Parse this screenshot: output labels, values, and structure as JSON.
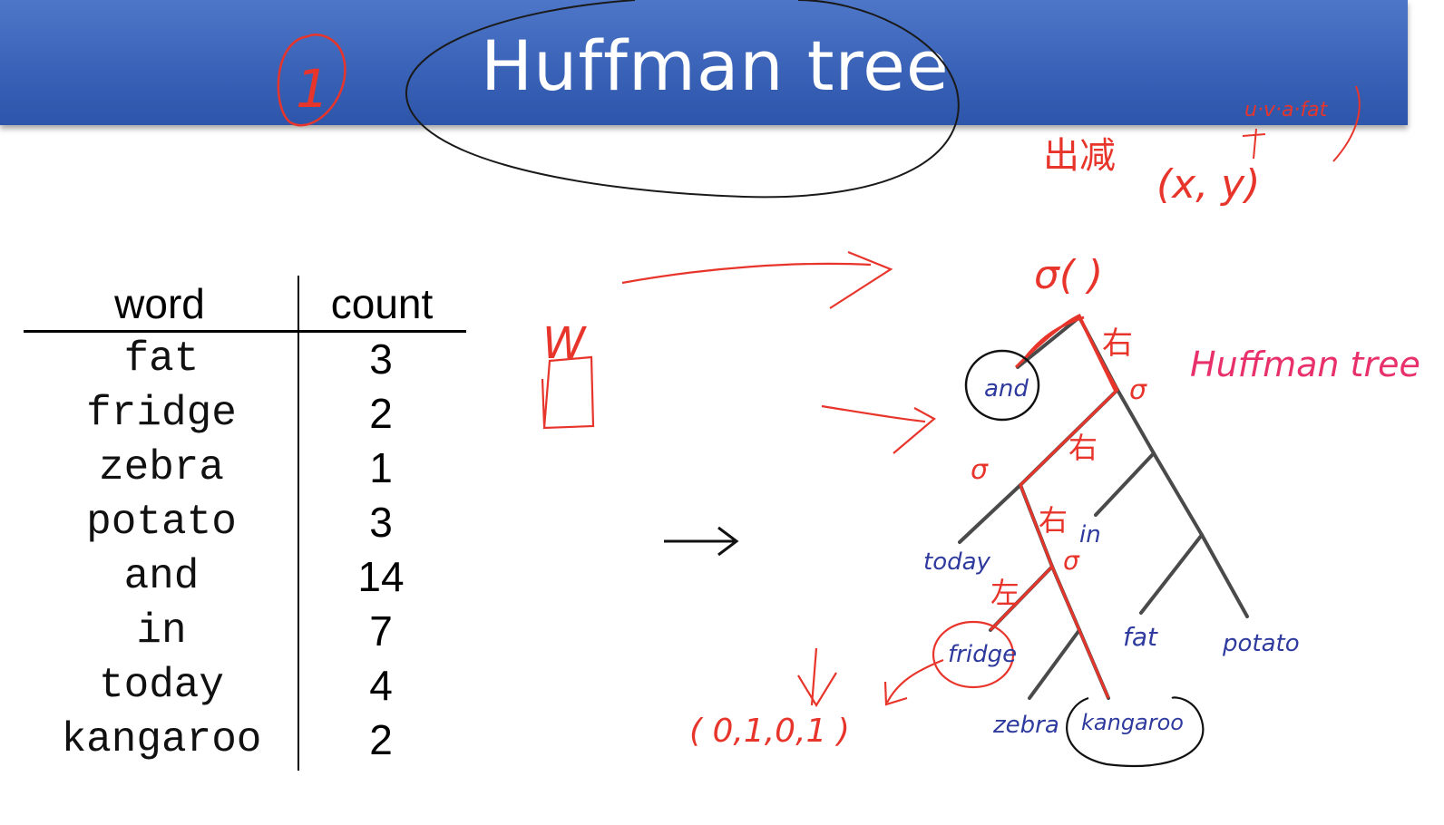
{
  "slide": {
    "title": "Huffman tree"
  },
  "table": {
    "headers": {
      "word": "word",
      "count": "count"
    },
    "rows": [
      {
        "word": "fat",
        "count": "3"
      },
      {
        "word": "fridge",
        "count": "2"
      },
      {
        "word": "zebra",
        "count": "1"
      },
      {
        "word": "potato",
        "count": "3"
      },
      {
        "word": "and",
        "count": "14"
      },
      {
        "word": "in",
        "count": "7"
      },
      {
        "word": "today",
        "count": "4"
      },
      {
        "word": "kangaroo",
        "count": "2"
      }
    ]
  },
  "tree": {
    "leaves": {
      "and": "and",
      "today": "today",
      "in": "in",
      "fridge": "fridge",
      "fat": "fat",
      "potato": "potato",
      "zebra": "zebra",
      "kangaroo": "kangaroo"
    }
  },
  "annotations": {
    "circled_number": "1",
    "top_right_chars": "出减",
    "top_right_label": "u·v·a·fat",
    "xy_label": "(x, y)",
    "sigma_label": "σ(  )",
    "w_label": "W",
    "huffman_label": "Huffman tree",
    "right_char": "右",
    "left_char": "左",
    "sigma_char": "σ",
    "code": "( 0,1,0,1 )"
  },
  "colors": {
    "banner": "#3a62b7",
    "title": "#ffffff",
    "ink_red": "#e8352b",
    "ink_black": "#1a1a1a",
    "ink_blue": "#2e3a9e",
    "tree_gray": "#4a4a4a"
  }
}
